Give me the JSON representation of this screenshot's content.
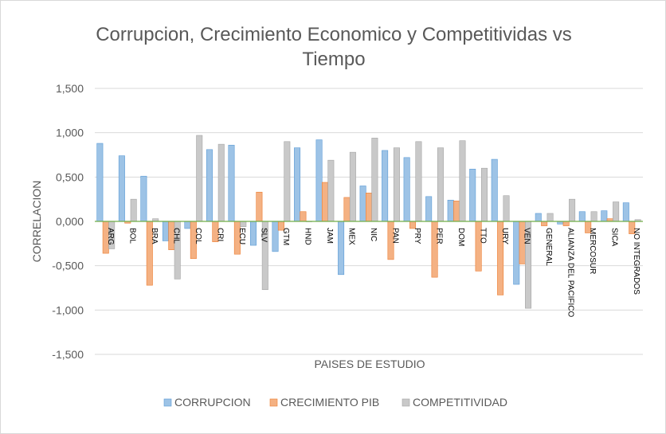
{
  "chart_data": {
    "type": "bar",
    "title": "Corrupcion, Crecimiento Economico y Competitividas vs Tiempo",
    "xlabel": "PAISES DE ESTUDIO",
    "ylabel": "CORRELACION",
    "ylim": [
      -1.5,
      1.5
    ],
    "yticks": [
      1.5,
      1.0,
      0.5,
      0.0,
      -0.5,
      -1.0,
      -1.5
    ],
    "ytick_labels": [
      "1,500",
      "1,000",
      "0,500",
      "0,000",
      "-0,500",
      "-1,000",
      "-1,500"
    ],
    "grid": true,
    "legend_position": "bottom",
    "categories": [
      "ARG",
      "BOL",
      "BRA",
      "CHL",
      "COL",
      "CRI",
      "ECU",
      "SLV",
      "GTM",
      "HND",
      "JAM",
      "MEX",
      "NIC",
      "PAN",
      "PRY",
      "PER",
      "DOM",
      "TTO",
      "URY",
      "VEN",
      "GENERAL",
      "ALIANZA DEL PACIFICO",
      "MERCOSUR",
      "SICA",
      "NO INTEGRADOS"
    ],
    "series": [
      {
        "name": "CORRUPCION",
        "color": "#9dc3e6",
        "values": [
          0.88,
          0.74,
          0.51,
          -0.22,
          -0.08,
          0.81,
          0.86,
          -0.27,
          -0.34,
          0.83,
          0.92,
          -0.6,
          0.4,
          0.8,
          0.72,
          0.28,
          0.24,
          0.59,
          0.7,
          -0.71,
          0.09,
          -0.03,
          0.11,
          0.12,
          0.21
        ]
      },
      {
        "name": "CRECIMIENTO PIB",
        "color": "#f4b183",
        "values": [
          -0.36,
          -0.02,
          -0.72,
          -0.32,
          -0.42,
          -0.23,
          -0.37,
          0.33,
          -0.1,
          0.11,
          0.44,
          0.27,
          0.32,
          -0.43,
          -0.08,
          -0.63,
          0.23,
          -0.56,
          -0.83,
          -0.48,
          -0.05,
          -0.05,
          -0.13,
          0.03,
          -0.14
        ]
      },
      {
        "name": "COMPETITIVIDAD",
        "color": "#c9c9c9",
        "values": [
          -0.31,
          0.25,
          0.03,
          -0.65,
          0.97,
          0.87,
          -0.06,
          -0.77,
          0.9,
          0.0,
          0.69,
          0.78,
          0.94,
          0.83,
          0.9,
          0.83,
          0.91,
          0.6,
          0.29,
          -0.98,
          0.09,
          0.25,
          0.11,
          0.22,
          0.02
        ]
      }
    ],
    "zero_line_color": "#70ad47"
  }
}
